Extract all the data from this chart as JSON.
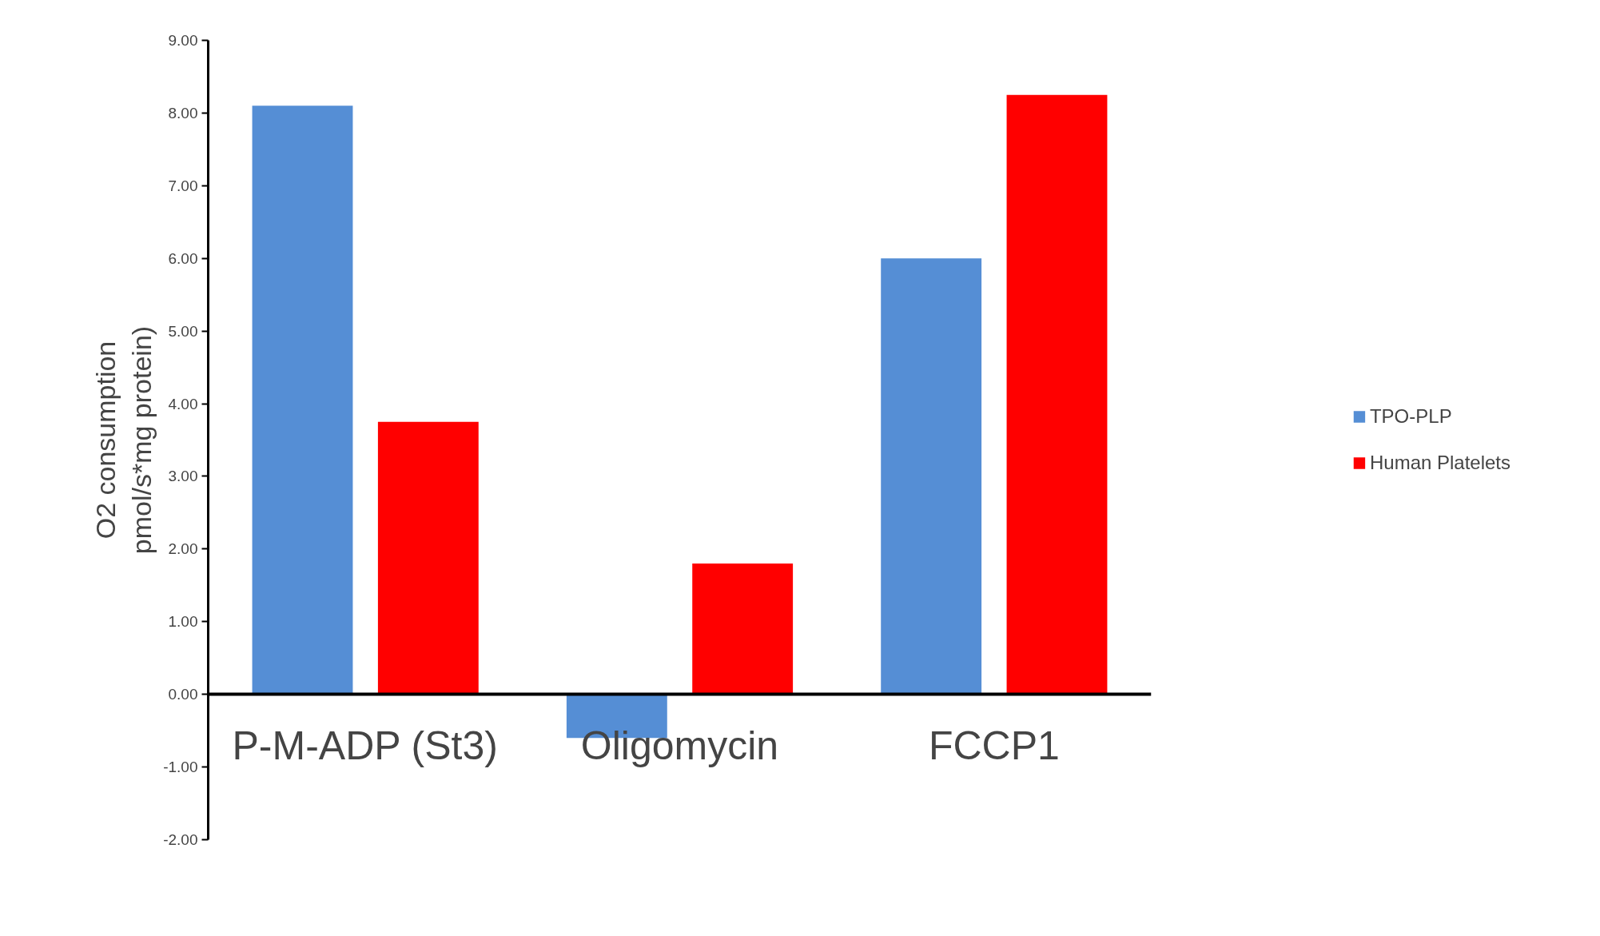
{
  "chart_data": {
    "type": "bar",
    "ylabel": "O2 consumption\npmol/s*mg protein)",
    "categories": [
      "P-M-ADP (St3)",
      "Oligomycin",
      "FCCP1"
    ],
    "series": [
      {
        "name": "TPO-PLP",
        "color": "#558ed5",
        "values": [
          8.1,
          -0.6,
          6.0
        ]
      },
      {
        "name": "Human Platelets",
        "color": "#ff0000",
        "values": [
          3.75,
          1.8,
          8.25
        ]
      }
    ],
    "ylim": [
      -2,
      9
    ],
    "yticks": [
      {
        "value": -2,
        "label": "-2.00"
      },
      {
        "value": -1,
        "label": "-1.00"
      },
      {
        "value": 0,
        "label": "0.00"
      },
      {
        "value": 1,
        "label": "1.00"
      },
      {
        "value": 2,
        "label": "2.00"
      },
      {
        "value": 3,
        "label": "3.00"
      },
      {
        "value": 4,
        "label": "4.00"
      },
      {
        "value": 5,
        "label": "5.00"
      },
      {
        "value": 6,
        "label": "6.00"
      },
      {
        "value": 7,
        "label": "7.00"
      },
      {
        "value": 8,
        "label": "8.00"
      },
      {
        "value": 9,
        "label": "9.00"
      }
    ],
    "grid": false,
    "legend": "right"
  }
}
